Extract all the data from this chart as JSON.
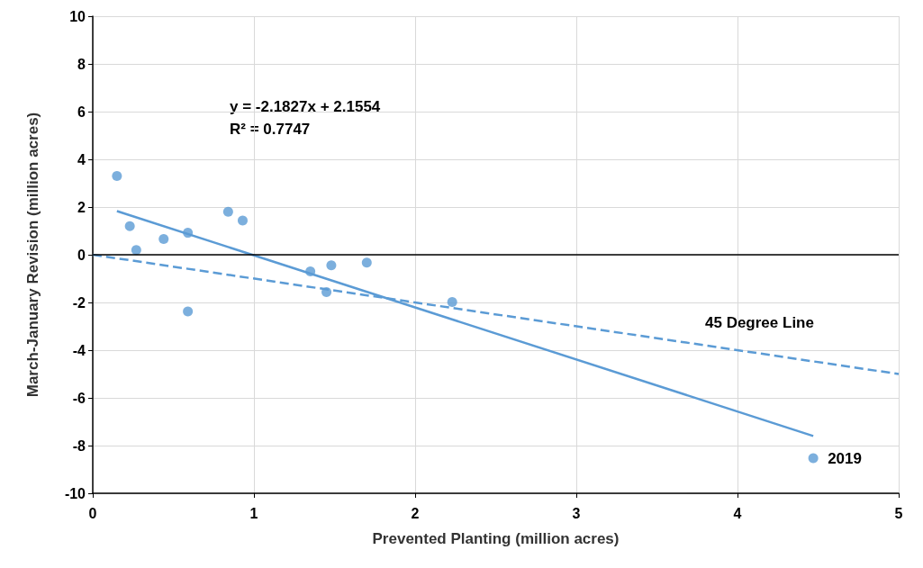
{
  "chart_data": {
    "type": "scatter",
    "xlabel": "Prevented Planting (million acres)",
    "ylabel": "March-January Revision (million acres)",
    "series": [
      {
        "type": "scatter",
        "color": "#5b9bd5",
        "marker": "circle",
        "x": [
          0.15,
          0.23,
          0.27,
          0.44,
          0.59,
          0.59,
          0.84,
          0.93,
          1.35,
          1.45,
          1.48,
          1.7,
          2.23,
          4.47
        ],
        "values": [
          3.3,
          1.2,
          0.2,
          0.66,
          0.92,
          -2.38,
          1.8,
          1.43,
          -0.7,
          -1.57,
          -0.44,
          -0.33,
          -1.98,
          -8.53
        ]
      },
      {
        "type": "line",
        "color": "#5b9bd5",
        "line_style": "solid",
        "x": [
          0.15,
          4.47
        ],
        "values": [
          1.83,
          -7.6
        ]
      },
      {
        "type": "line",
        "color": "#5b9bd5",
        "line_style": "dashed",
        "x": [
          0,
          5
        ],
        "values": [
          0,
          -5
        ]
      }
    ],
    "annotations": [
      "y = -2.1827x + 2.1554",
      "R² = 0.7747",
      "45 Degree Line",
      {
        "text": "2019",
        "x": 4.47,
        "y": -8.53
      }
    ],
    "ref_lines": [
      {
        "axis": "y",
        "value": 0,
        "color": "#000000"
      }
    ],
    "xlim": [
      0,
      5
    ],
    "xticks": [
      0,
      1,
      2,
      3,
      4,
      5
    ],
    "ylim": [
      -10,
      10
    ],
    "yticks": [
      -10,
      -8,
      -6,
      -4,
      -2,
      0,
      2,
      4,
      6,
      8,
      10
    ],
    "grid": true
  }
}
